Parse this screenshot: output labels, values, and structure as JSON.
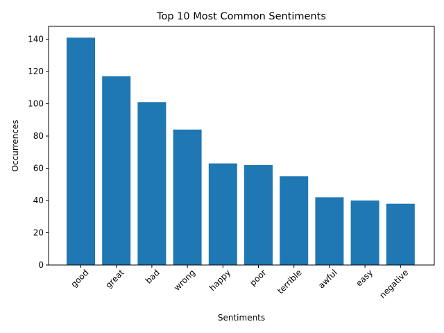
{
  "chart_data": {
    "type": "bar",
    "title": "Top 10 Most Common Sentiments",
    "xlabel": "Sentiments",
    "ylabel": "Occurrences",
    "categories": [
      "good",
      "great",
      "bad",
      "wrong",
      "happy",
      "poor",
      "terrible",
      "awful",
      "easy",
      "negative"
    ],
    "values": [
      141,
      117,
      101,
      84,
      63,
      62,
      55,
      42,
      40,
      38
    ],
    "ylim": [
      0,
      148
    ],
    "yticks": [
      0,
      20,
      40,
      60,
      80,
      100,
      120,
      140
    ],
    "bar_color": "#1f77b4",
    "grid": false,
    "legend": "none"
  }
}
